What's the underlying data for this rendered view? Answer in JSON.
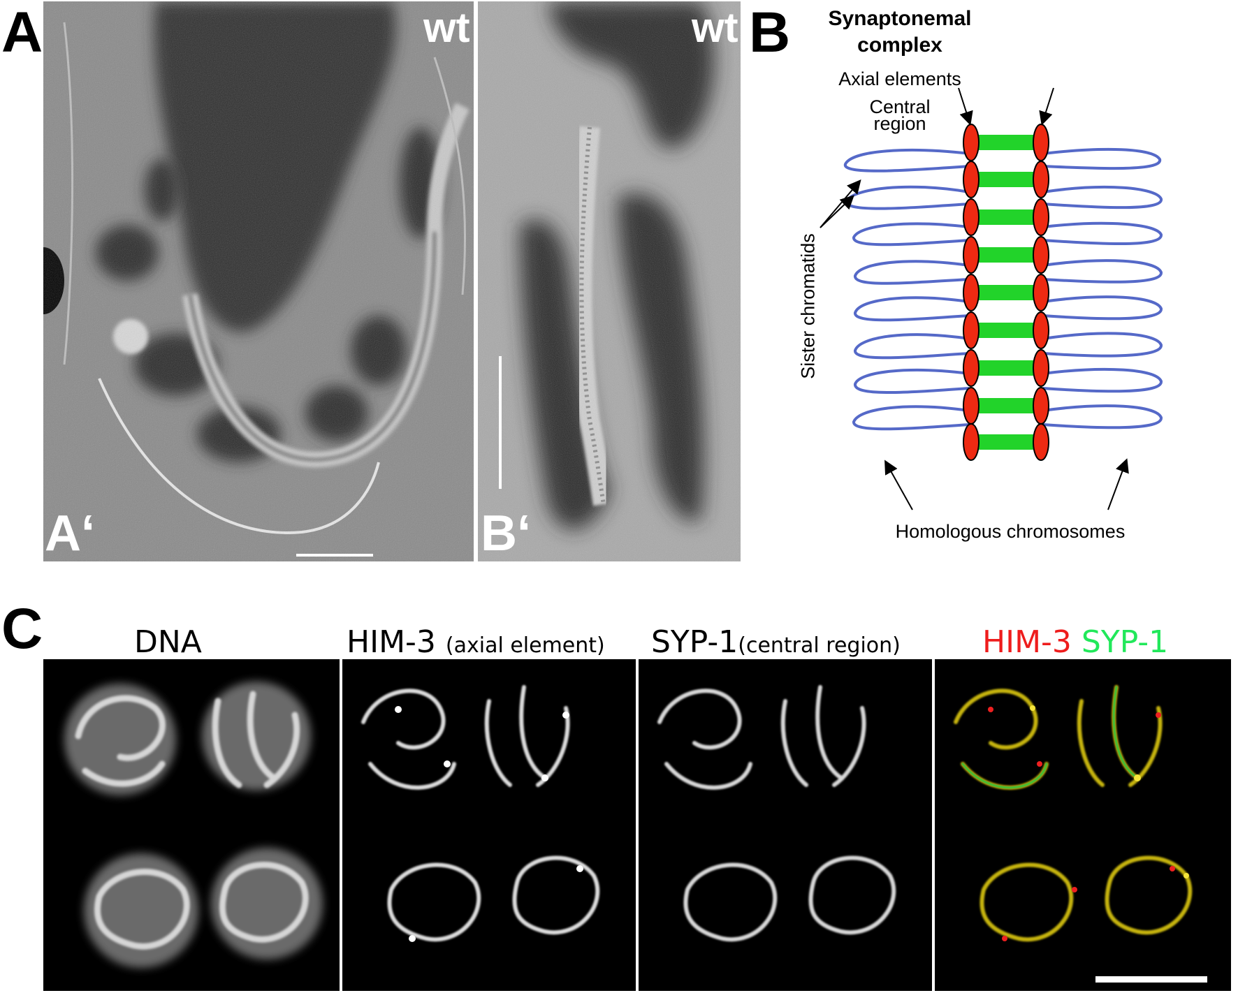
{
  "panels": {
    "A": {
      "letter": "A",
      "sub_left": "A‘",
      "sub_right": "B‘",
      "genotype_left": "wt",
      "genotype_right": "wt"
    },
    "B": {
      "letter": "B",
      "title_line1": "Synaptonemal",
      "title_line2": "complex",
      "labels": {
        "axial_elements": "Axial elements",
        "central_region_line1": "Central",
        "central_region_line2": "region",
        "sister_chromatids": "Sister chromatids",
        "homologous_chromosomes": "Homologous chromosomes"
      },
      "colors": {
        "axial": "#ee2a12",
        "central": "#22d32a",
        "chromatin": "#5569c8"
      }
    },
    "C": {
      "letter": "C",
      "titles": {
        "dna": "DNA",
        "him3": "HIM-3",
        "him3_note": "(axial element)",
        "syp1": "SYP-1",
        "syp1_note": "(central region)",
        "merge_red": "HIM-3",
        "merge_green": "SYP-1"
      },
      "colors": {
        "red": "#ee1c1c",
        "green": "#21e85a"
      }
    }
  }
}
